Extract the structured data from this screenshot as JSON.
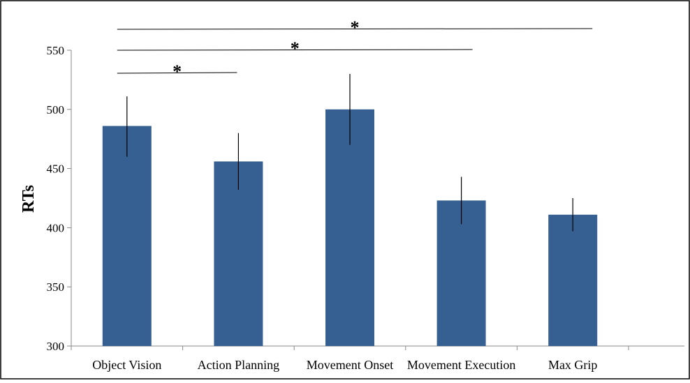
{
  "chart_data": {
    "type": "bar",
    "title": "",
    "xlabel": "",
    "ylabel": "RTs",
    "ylim": [
      300,
      550
    ],
    "yticks": [
      300,
      350,
      400,
      450,
      500,
      550
    ],
    "categories": [
      "Object Vision",
      "Action Planning",
      "Movement Onset",
      "Movement Execution",
      "Max Grip"
    ],
    "values": [
      486,
      456,
      500,
      423,
      411
    ],
    "error_low": [
      460,
      432,
      470,
      403,
      397
    ],
    "error_high": [
      511,
      480,
      530,
      443,
      425
    ],
    "bar_color": "#366092",
    "grid": false,
    "legend": "none",
    "significance": [
      {
        "from": "Object Vision",
        "to": "Max Grip",
        "label": "*"
      },
      {
        "from": "Object Vision",
        "to": "Movement Execution",
        "label": "*"
      },
      {
        "from": "Object Vision",
        "to": "Action Planning",
        "label": "*"
      }
    ]
  }
}
